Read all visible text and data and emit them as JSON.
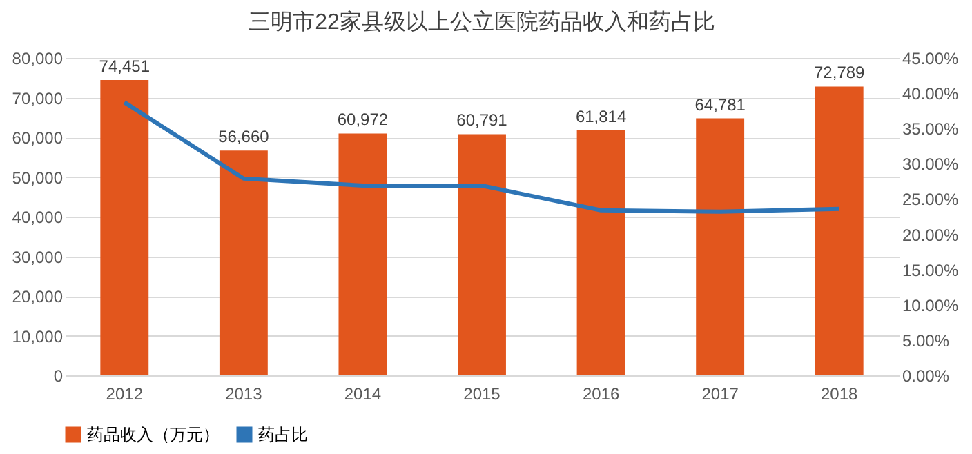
{
  "chart_data": {
    "type": "bar",
    "title": "三明市22家县级以上公立医院药品收入和药占比",
    "categories": [
      "2012",
      "2013",
      "2014",
      "2015",
      "2016",
      "2017",
      "2018"
    ],
    "series": [
      {
        "name": "药品收入（万元）",
        "color": "#e2561d",
        "values": [
          74451,
          56660,
          60972,
          60791,
          61814,
          64781,
          72789
        ],
        "value_labels": [
          "74,451",
          "56,660",
          "60,972",
          "60,791",
          "61,814",
          "64,781",
          "72,789"
        ]
      },
      {
        "name": "药占比",
        "type": "line",
        "axis": "y2",
        "color": "#2e75b6",
        "values": [
          38.7,
          27.9,
          26.9,
          26.9,
          23.4,
          23.2,
          23.6
        ]
      }
    ],
    "ylim": [
      0,
      80000
    ],
    "yticks": [
      0,
      {
        "value": 10000,
        "label": "10,000"
      },
      {
        "value": 20000,
        "label": "20,000"
      },
      {
        "value": 30000,
        "label": "30,000"
      },
      {
        "value": 40000,
        "label": "40,000"
      },
      {
        "value": 50000,
        "label": "50,000"
      },
      {
        "value": 60000,
        "label": "60,000"
      },
      {
        "value": 70000,
        "label": "70,000"
      },
      {
        "value": 80000,
        "label": "80,000"
      }
    ],
    "y2lim": [
      0,
      45
    ],
    "y2ticks": [
      {
        "value": 0,
        "label": "0.00%"
      },
      {
        "value": 5,
        "label": "5.00%"
      },
      {
        "value": 10,
        "label": "10.00%"
      },
      {
        "value": 15,
        "label": "15.00%"
      },
      {
        "value": 20,
        "label": "20.00%"
      },
      {
        "value": 25,
        "label": "25.00%"
      },
      {
        "value": 30,
        "label": "30.00%"
      },
      {
        "value": 35,
        "label": "35.00%"
      },
      {
        "value": 40,
        "label": "40.00%"
      },
      {
        "value": 45,
        "label": "45.00%"
      }
    ],
    "grid": "y",
    "legend": "bottom",
    "marker": "none",
    "line_style": "solid"
  }
}
